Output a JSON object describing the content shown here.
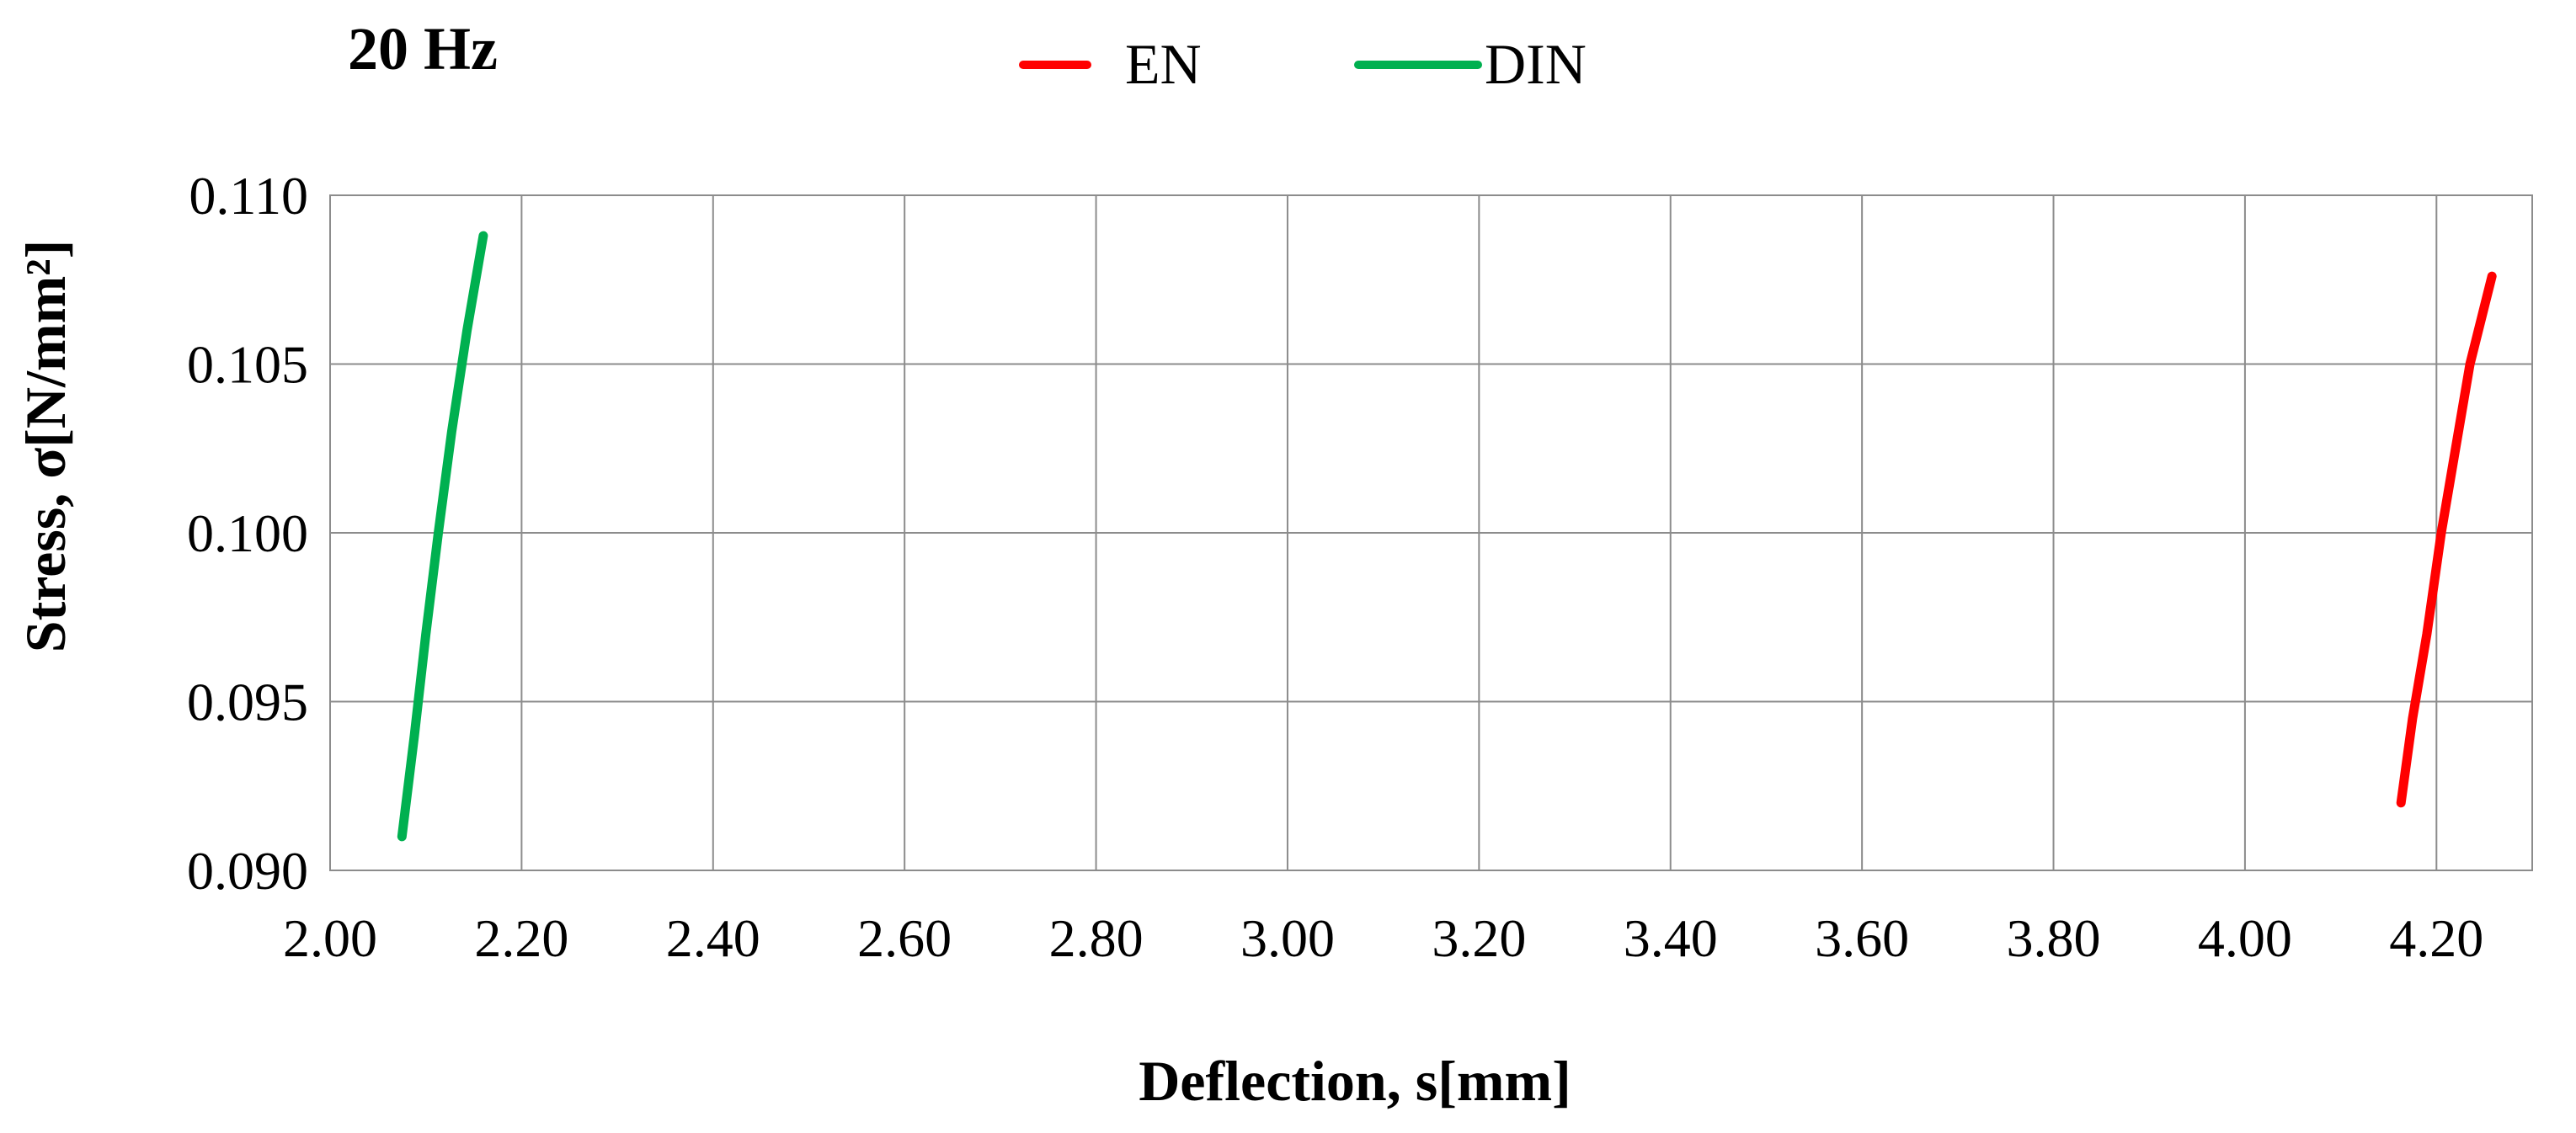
{
  "chart_data": {
    "type": "line",
    "title": "20 Hz",
    "xlabel": "Deflection, s[mm]",
    "ylabel": "Stress, σ[N/mm²]",
    "xlim": [
      2.0,
      4.3
    ],
    "ylim": [
      0.09,
      0.11
    ],
    "x_ticks": [
      "2.00",
      "2.20",
      "2.40",
      "2.60",
      "2.80",
      "3.00",
      "3.20",
      "3.40",
      "3.60",
      "3.80",
      "4.00",
      "4.20"
    ],
    "y_ticks": [
      "0.090",
      "0.095",
      "0.100",
      "0.105",
      "0.110"
    ],
    "grid": true,
    "legend_position": "top-center",
    "series": [
      {
        "name": "EN",
        "color": "#ff0000",
        "points": [
          {
            "x": 4.163,
            "y": 0.092
          },
          {
            "x": 4.175,
            "y": 0.0945
          },
          {
            "x": 4.19,
            "y": 0.097
          },
          {
            "x": 4.205,
            "y": 0.1
          },
          {
            "x": 4.22,
            "y": 0.1025
          },
          {
            "x": 4.235,
            "y": 0.105
          },
          {
            "x": 4.258,
            "y": 0.1076
          }
        ]
      },
      {
        "name": "DIN",
        "color": "#00b050",
        "points": [
          {
            "x": 2.075,
            "y": 0.091
          },
          {
            "x": 2.088,
            "y": 0.094
          },
          {
            "x": 2.1,
            "y": 0.097
          },
          {
            "x": 2.113,
            "y": 0.1
          },
          {
            "x": 2.127,
            "y": 0.103
          },
          {
            "x": 2.143,
            "y": 0.106
          },
          {
            "x": 2.16,
            "y": 0.1088
          }
        ]
      }
    ]
  }
}
